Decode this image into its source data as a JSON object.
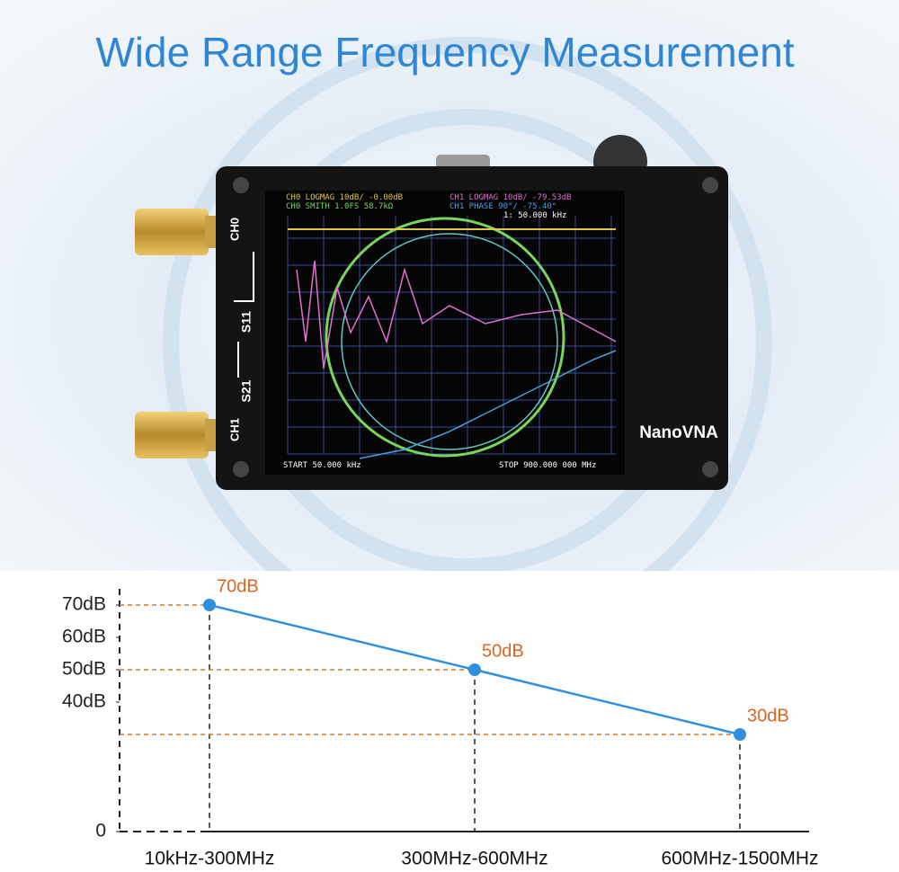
{
  "title": "Wide Range Frequency Measurement",
  "device": {
    "name": "NanoVNA",
    "port_top": "CH0",
    "port_bottom": "CH1",
    "path_top": "S11",
    "path_bottom": "S21",
    "screen": {
      "trace_1": "CH0 LOGMAG 10dB/ -0.00dB",
      "trace_2": "CH0 SMITH 1.0FS 58.7kΩ",
      "trace_3": "CH1 LOGMAG 10dB/ -79.53dB",
      "trace_4": "CH1 PHASE 90°/ -75.40°",
      "marker": "1: 50.000 kHz",
      "start": "START 50.000 kHz",
      "stop": "STOP 900.000 000 MHz"
    }
  },
  "chart_data": {
    "type": "line",
    "categories": [
      "10kHz-300MHz",
      "300MHz-600MHz",
      "600MHz-1500MHz"
    ],
    "values": [
      70,
      50,
      30
    ],
    "value_labels": [
      "70dB",
      "50dB",
      "30dB"
    ],
    "color": "#2f8fdc",
    "label_color": "#e0651f",
    "ylim": [
      0,
      75
    ],
    "yticks": [
      0,
      {
        "value": 40,
        "label": "40dB"
      },
      {
        "value": 50,
        "label": "50dB"
      },
      {
        "value": 60,
        "label": "60dB"
      },
      {
        "value": 70,
        "label": "70dB"
      }
    ]
  }
}
